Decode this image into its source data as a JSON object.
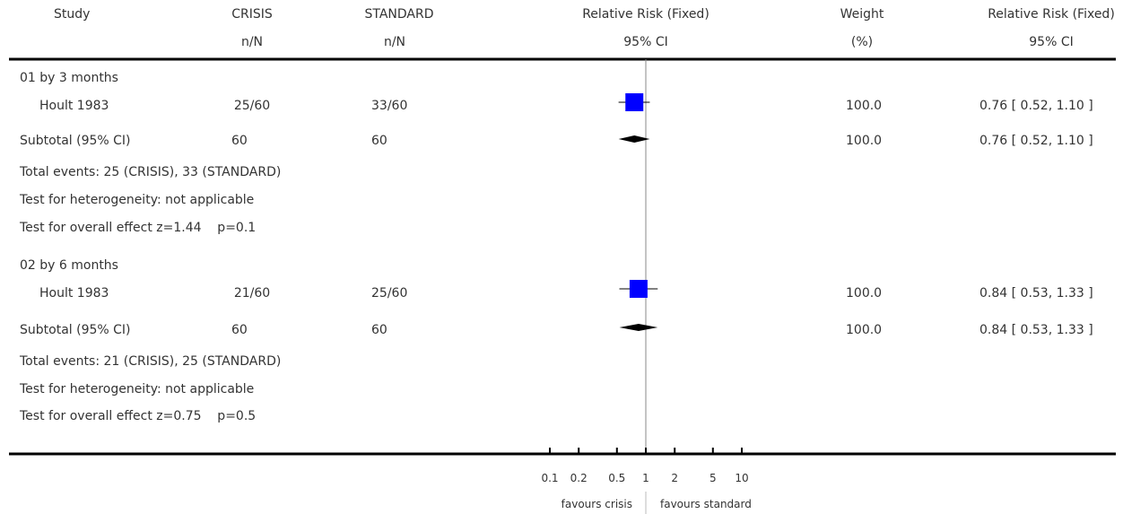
{
  "header": {
    "study": "Study",
    "crisis": "CRISIS",
    "crisis_sub": "n/N",
    "standard": "STANDARD",
    "standard_sub": "n/N",
    "rr": "Relative Risk (Fixed)",
    "rr_sub": "95% CI",
    "weight": "Weight",
    "weight_sub": "(%)",
    "rr2": "Relative Risk (Fixed)",
    "rr2_sub": "95% CI"
  },
  "groups": [
    {
      "title": "01 by 3 months",
      "study": {
        "name": "Hoult 1983",
        "crisis": "25/60",
        "standard": "33/60",
        "weight": "100.0",
        "ci_text": "0.76 [ 0.52, 1.10 ]"
      },
      "subtotal": {
        "label": "Subtotal (95% CI)",
        "crisis": "60",
        "standard": "60",
        "weight": "100.0",
        "ci_text": "0.76 [ 0.52, 1.10 ]"
      },
      "events": "Total events: 25 (CRISIS), 33 (STANDARD)",
      "heterogeneity": "Test for heterogeneity: not applicable",
      "overall": "Test for overall effect z=1.44    p=0.1"
    },
    {
      "title": "02 by 6 months",
      "study": {
        "name": "Hoult 1983",
        "crisis": "21/60",
        "standard": "25/60",
        "weight": "100.0",
        "ci_text": "0.84 [ 0.53, 1.33 ]"
      },
      "subtotal": {
        "label": "Subtotal (95% CI)",
        "crisis": "60",
        "standard": "60",
        "weight": "100.0",
        "ci_text": "0.84 [ 0.53, 1.33 ]"
      },
      "events": "Total events: 21 (CRISIS), 25 (STANDARD)",
      "heterogeneity": "Test for heterogeneity: not applicable",
      "overall": "Test for overall effect z=0.75    p=0.5"
    }
  ],
  "axis": {
    "favours_left": "favours crisis",
    "favours_right": "favours standard"
  },
  "colors": {
    "marker": "#0000ff",
    "diamond": "#000000",
    "rule": "#000000"
  },
  "chart_data": {
    "type": "forest",
    "scale": "log",
    "xlim": [
      0.1,
      10
    ],
    "ticks": [
      0.1,
      0.2,
      0.5,
      1,
      2,
      5,
      10
    ],
    "tick_labels": [
      "0.1",
      "0.2",
      "0.5",
      "1",
      "2",
      "5",
      "10"
    ],
    "reference": 1,
    "studies": [
      {
        "group": "01 by 3 months",
        "name": "Hoult 1983",
        "rr": 0.76,
        "lower": 0.52,
        "upper": 1.1,
        "weight": 100.0
      },
      {
        "group": "02 by 6 months",
        "name": "Hoult 1983",
        "rr": 0.84,
        "lower": 0.53,
        "upper": 1.33,
        "weight": 100.0
      }
    ],
    "subtotals": [
      {
        "group": "01 by 3 months",
        "rr": 0.76,
        "lower": 0.52,
        "upper": 1.1
      },
      {
        "group": "02 by 6 months",
        "rr": 0.84,
        "lower": 0.53,
        "upper": 1.33
      }
    ]
  }
}
